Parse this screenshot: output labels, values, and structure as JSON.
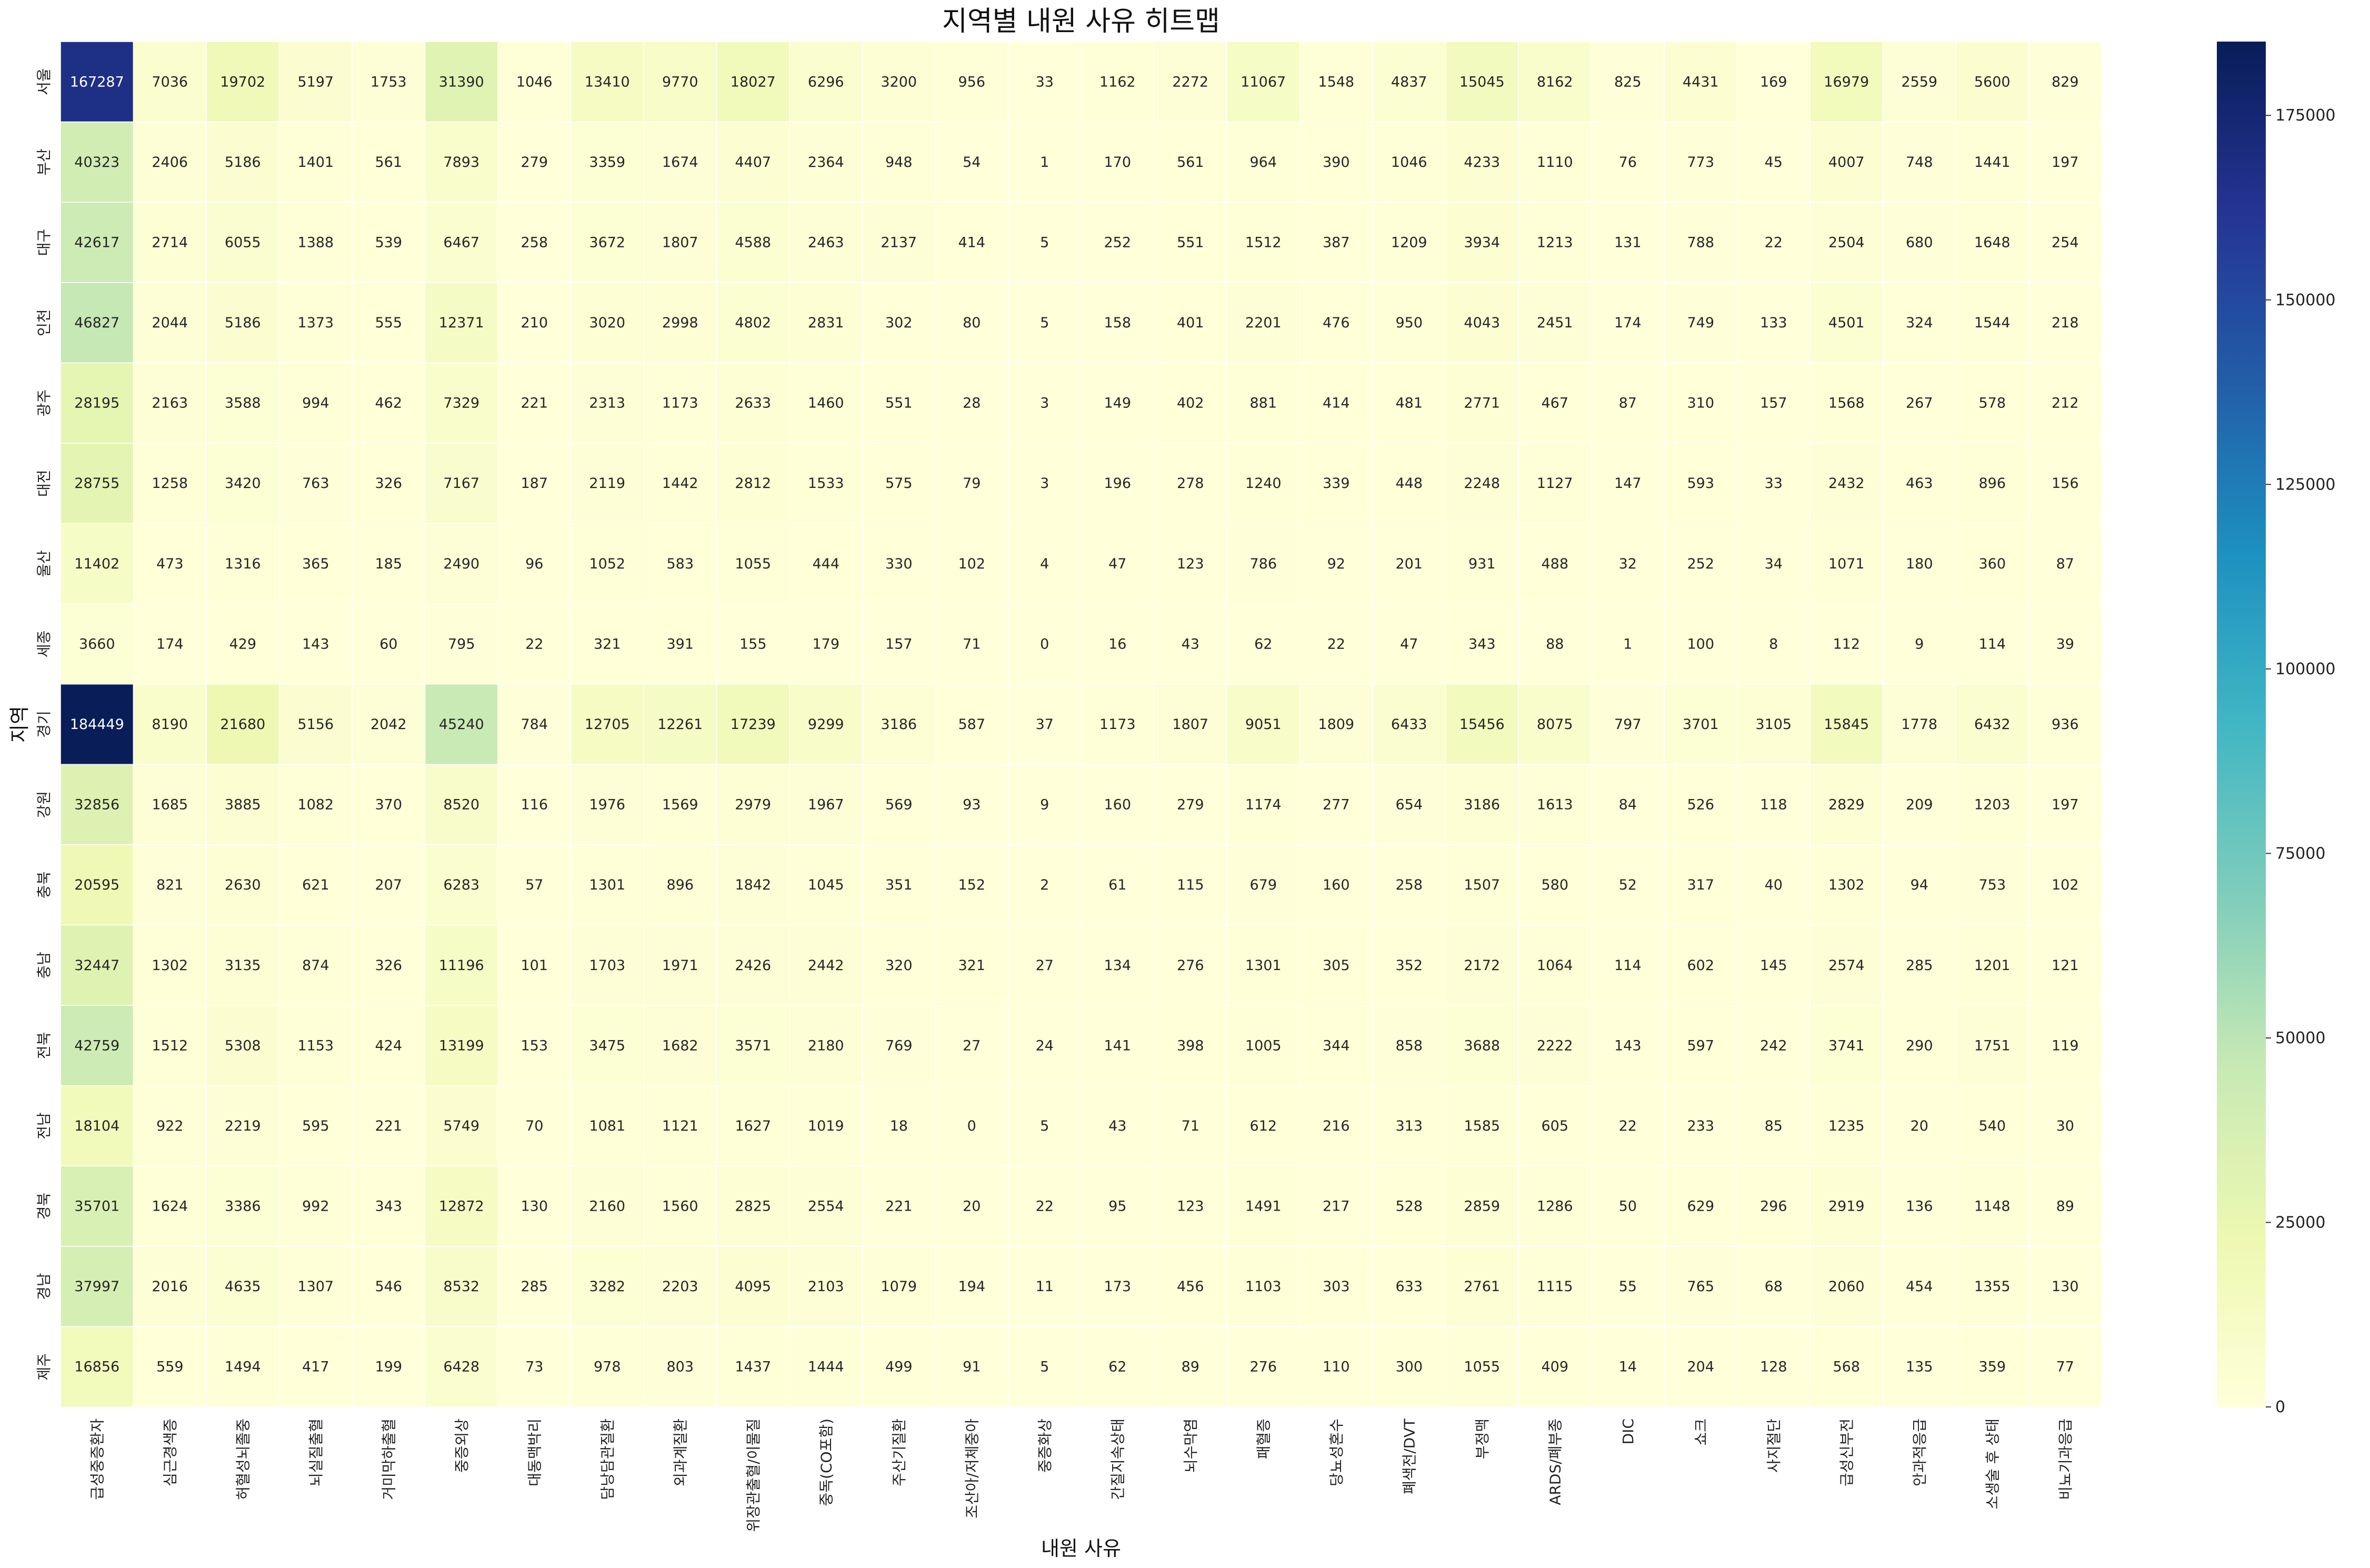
{
  "chart_data": {
    "type": "heatmap",
    "title": "지역별 내원 사유 히트맵",
    "xlabel": "내원 사유",
    "ylabel": "지역",
    "colormap": "YlGnBu",
    "colorbar": {
      "min": 0,
      "max": 185000,
      "ticks": [
        0,
        25000,
        50000,
        75000,
        100000,
        125000,
        150000,
        175000
      ]
    },
    "rows": [
      "서울",
      "부산",
      "대구",
      "인천",
      "광주",
      "대전",
      "울산",
      "세종",
      "경기",
      "강원",
      "충북",
      "충남",
      "전북",
      "전남",
      "경북",
      "경남",
      "제주"
    ],
    "columns": [
      "급성중증환자",
      "심근경색증",
      "허혈성뇌졸중",
      "뇌실질출혈",
      "거미막하출혈",
      "중증외상",
      "대동맥박리",
      "담낭담관질환",
      "외과계질환",
      "위장관출혈/이물질",
      "중독(CO포함)",
      "주산기질환",
      "조산아/저체중아",
      "중증화상",
      "간질지속상태",
      "뇌수막염",
      "패혈증",
      "당뇨성혼수",
      "폐색전/DVT",
      "부정맥",
      "ARDS/폐부종",
      "DIC",
      "쇼크",
      "사지절단",
      "급성신부전",
      "안과적응급",
      "소생술 후 상태",
      "비뇨기과응급"
    ],
    "values": [
      [
        167287,
        7036,
        19702,
        5197,
        1753,
        31390,
        1046,
        13410,
        9770,
        18027,
        6296,
        3200,
        956,
        33,
        1162,
        2272,
        11067,
        1548,
        4837,
        15045,
        8162,
        825,
        4431,
        169,
        16979,
        2559,
        5600,
        829
      ],
      [
        40323,
        2406,
        5186,
        1401,
        561,
        7893,
        279,
        3359,
        1674,
        4407,
        2364,
        948,
        54,
        1,
        170,
        561,
        964,
        390,
        1046,
        4233,
        1110,
        76,
        773,
        45,
        4007,
        748,
        1441,
        197
      ],
      [
        42617,
        2714,
        6055,
        1388,
        539,
        6467,
        258,
        3672,
        1807,
        4588,
        2463,
        2137,
        414,
        5,
        252,
        551,
        1512,
        387,
        1209,
        3934,
        1213,
        131,
        788,
        22,
        2504,
        680,
        1648,
        254
      ],
      [
        46827,
        2044,
        5186,
        1373,
        555,
        12371,
        210,
        3020,
        2998,
        4802,
        2831,
        302,
        80,
        5,
        158,
        401,
        2201,
        476,
        950,
        4043,
        2451,
        174,
        749,
        133,
        4501,
        324,
        1544,
        218
      ],
      [
        28195,
        2163,
        3588,
        994,
        462,
        7329,
        221,
        2313,
        1173,
        2633,
        1460,
        551,
        28,
        3,
        149,
        402,
        881,
        414,
        481,
        2771,
        467,
        87,
        310,
        157,
        1568,
        267,
        578,
        212
      ],
      [
        28755,
        1258,
        3420,
        763,
        326,
        7167,
        187,
        2119,
        1442,
        2812,
        1533,
        575,
        79,
        3,
        196,
        278,
        1240,
        339,
        448,
        2248,
        1127,
        147,
        593,
        33,
        2432,
        463,
        896,
        156
      ],
      [
        11402,
        473,
        1316,
        365,
        185,
        2490,
        96,
        1052,
        583,
        1055,
        444,
        330,
        102,
        4,
        47,
        123,
        786,
        92,
        201,
        931,
        488,
        32,
        252,
        34,
        1071,
        180,
        360,
        87
      ],
      [
        3660,
        174,
        429,
        143,
        60,
        795,
        22,
        321,
        391,
        155,
        179,
        157,
        71,
        0,
        16,
        43,
        62,
        22,
        47,
        343,
        88,
        1,
        100,
        8,
        112,
        9,
        114,
        39
      ],
      [
        184449,
        8190,
        21680,
        5156,
        2042,
        45240,
        784,
        12705,
        12261,
        17239,
        9299,
        3186,
        587,
        37,
        1173,
        1807,
        9051,
        1809,
        6433,
        15456,
        8075,
        797,
        3701,
        3105,
        15845,
        1778,
        6432,
        936
      ],
      [
        32856,
        1685,
        3885,
        1082,
        370,
        8520,
        116,
        1976,
        1569,
        2979,
        1967,
        569,
        93,
        9,
        160,
        279,
        1174,
        277,
        654,
        3186,
        1613,
        84,
        526,
        118,
        2829,
        209,
        1203,
        197
      ],
      [
        20595,
        821,
        2630,
        621,
        207,
        6283,
        57,
        1301,
        896,
        1842,
        1045,
        351,
        152,
        2,
        61,
        115,
        679,
        160,
        258,
        1507,
        580,
        52,
        317,
        40,
        1302,
        94,
        753,
        102
      ],
      [
        32447,
        1302,
        3135,
        874,
        326,
        11196,
        101,
        1703,
        1971,
        2426,
        2442,
        320,
        321,
        27,
        134,
        276,
        1301,
        305,
        352,
        2172,
        1064,
        114,
        602,
        145,
        2574,
        285,
        1201,
        121
      ],
      [
        42759,
        1512,
        5308,
        1153,
        424,
        13199,
        153,
        3475,
        1682,
        3571,
        2180,
        769,
        27,
        24,
        141,
        398,
        1005,
        344,
        858,
        3688,
        2222,
        143,
        597,
        242,
        3741,
        290,
        1751,
        119
      ],
      [
        18104,
        922,
        2219,
        595,
        221,
        5749,
        70,
        1081,
        1121,
        1627,
        1019,
        18,
        0,
        5,
        43,
        71,
        612,
        216,
        313,
        1585,
        605,
        22,
        233,
        85,
        1235,
        20,
        540,
        30
      ],
      [
        35701,
        1624,
        3386,
        992,
        343,
        12872,
        130,
        2160,
        1560,
        2825,
        2554,
        221,
        20,
        22,
        95,
        123,
        1491,
        217,
        528,
        2859,
        1286,
        50,
        629,
        296,
        2919,
        136,
        1148,
        89
      ],
      [
        37997,
        2016,
        4635,
        1307,
        546,
        8532,
        285,
        3282,
        2203,
        4095,
        2103,
        1079,
        194,
        11,
        173,
        456,
        1103,
        303,
        633,
        2761,
        1115,
        55,
        765,
        68,
        2060,
        454,
        1355,
        130
      ],
      [
        16856,
        559,
        1494,
        417,
        199,
        6428,
        73,
        978,
        803,
        1437,
        1444,
        499,
        91,
        5,
        62,
        89,
        276,
        110,
        300,
        1055,
        409,
        14,
        204,
        128,
        568,
        135,
        359,
        77
      ]
    ]
  }
}
